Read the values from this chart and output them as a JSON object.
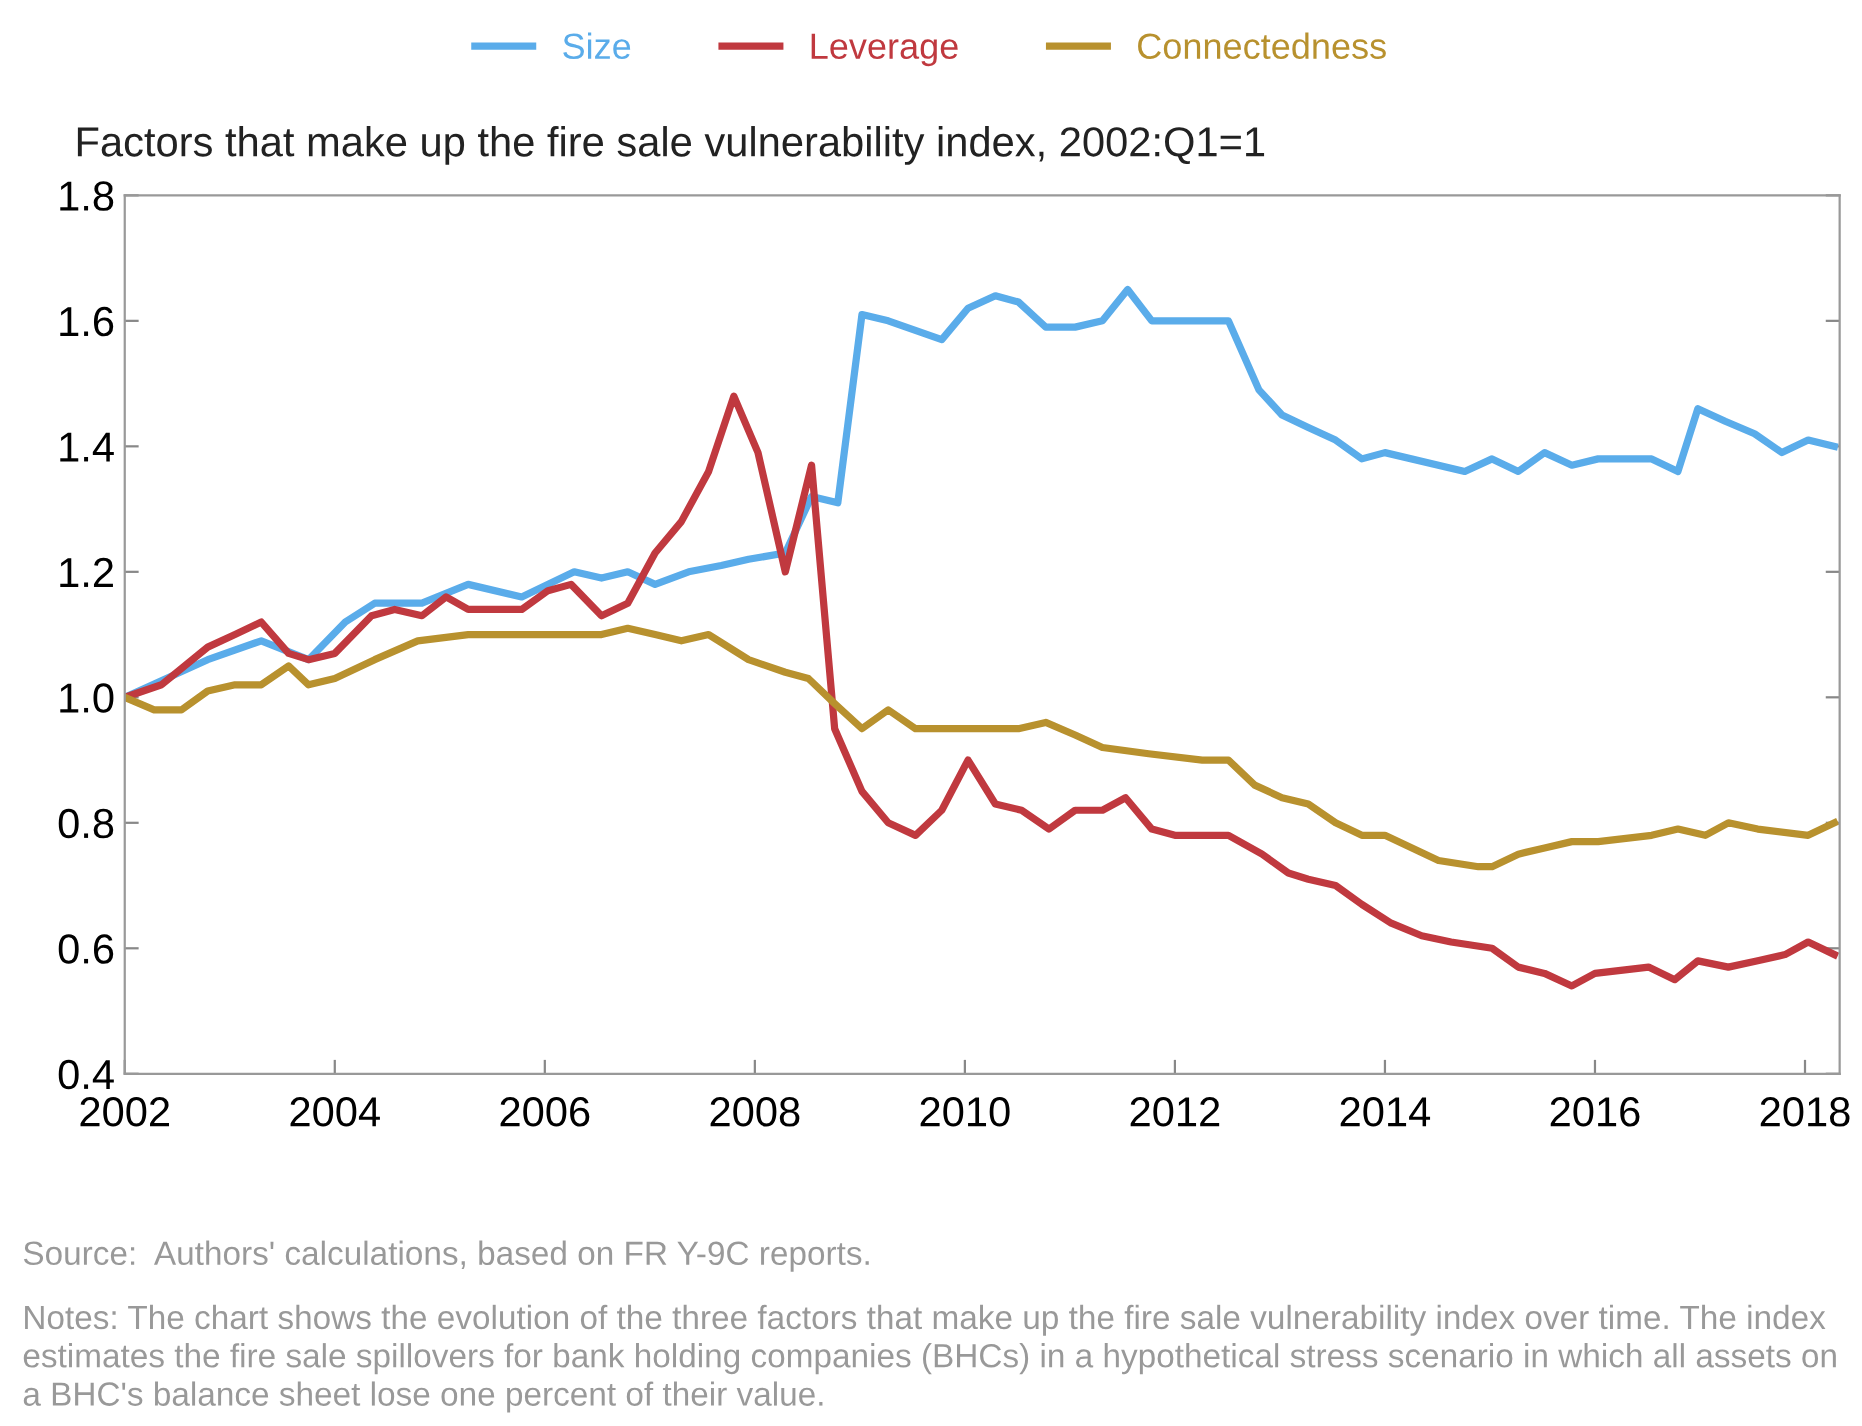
{
  "chart_data": {
    "type": "line",
    "title": "Factors that make up the fire sale vulnerability index, 2002:Q1=1",
    "annotations": [
      "Source:  Authors' calculations, based on FR Y-9C reports.",
      "Notes: The chart shows the evolution of the three factors that make up the fire sale vulnerability index over time. The index estimates the fire sale spillovers for bank holding companies (BHCs) in a hypothetical stress scenario in which all assets on a BHC's balance sheet lose one percent of their value."
    ],
    "series": [
      {
        "name": "Size",
        "color": "#5aacea",
        "x": [
          2002,
          2002.79,
          2003.3,
          2003.75,
          2004.1,
          2004.38,
          2004.83,
          2005.27,
          2005.78,
          2006.28,
          2006.54,
          2006.79,
          2007.05,
          2007.37,
          2007.68,
          2007.94,
          2008.29,
          2008.54,
          2008.79,
          2009.02,
          2009.27,
          2009.78,
          2010.03,
          2010.29,
          2010.51,
          2010.77,
          2011.05,
          2011.31,
          2011.55,
          2011.78,
          2012.0,
          2012.51,
          2012.8,
          2013.02,
          2013.27,
          2013.53,
          2013.78,
          2014.0,
          2014.76,
          2015.02,
          2015.27,
          2015.52,
          2015.78,
          2016.03,
          2016.54,
          2016.79,
          2016.98,
          2017.24,
          2017.52,
          2017.78,
          2018.03,
          2018.28
        ],
        "values": [
          1.0,
          1.06,
          1.09,
          1.06,
          1.12,
          1.15,
          1.15,
          1.18,
          1.16,
          1.2,
          1.19,
          1.2,
          1.18,
          1.2,
          1.21,
          1.22,
          1.23,
          1.32,
          1.31,
          1.61,
          1.6,
          1.57,
          1.62,
          1.64,
          1.63,
          1.59,
          1.59,
          1.6,
          1.65,
          1.6,
          1.6,
          1.6,
          1.49,
          1.45,
          1.43,
          1.41,
          1.38,
          1.39,
          1.36,
          1.38,
          1.36,
          1.39,
          1.37,
          1.38,
          1.38,
          1.36,
          1.46,
          1.44,
          1.42,
          1.39,
          1.41,
          1.4
        ]
      },
      {
        "name": "Leverage",
        "color": "#c0393f",
        "x": [
          2002,
          2002.35,
          2002.79,
          2003.05,
          2003.3,
          2003.56,
          2003.75,
          2004.0,
          2004.35,
          2004.57,
          2004.83,
          2005.06,
          2005.27,
          2005.52,
          2005.78,
          2006.03,
          2006.25,
          2006.54,
          2006.79,
          2007.05,
          2007.3,
          2007.56,
          2007.8,
          2008.03,
          2008.29,
          2008.54,
          2008.76,
          2009.02,
          2009.27,
          2009.53,
          2009.78,
          2010.03,
          2010.29,
          2010.54,
          2010.8,
          2011.05,
          2011.31,
          2011.53,
          2011.78,
          2012.0,
          2012.51,
          2012.83,
          2013.08,
          2013.27,
          2013.53,
          2013.78,
          2014.06,
          2014.35,
          2014.63,
          2015.02,
          2015.27,
          2015.52,
          2015.78,
          2016.0,
          2016.51,
          2016.76,
          2016.98,
          2017.27,
          2017.55,
          2017.81,
          2018.03,
          2018.28
        ],
        "values": [
          1.0,
          1.02,
          1.08,
          1.1,
          1.12,
          1.07,
          1.06,
          1.07,
          1.13,
          1.14,
          1.13,
          1.16,
          1.14,
          1.14,
          1.14,
          1.17,
          1.18,
          1.13,
          1.15,
          1.23,
          1.28,
          1.36,
          1.48,
          1.39,
          1.2,
          1.37,
          0.95,
          0.85,
          0.8,
          0.78,
          0.82,
          0.9,
          0.83,
          0.82,
          0.79,
          0.82,
          0.82,
          0.84,
          0.79,
          0.78,
          0.78,
          0.75,
          0.72,
          0.71,
          0.7,
          0.67,
          0.64,
          0.62,
          0.61,
          0.6,
          0.57,
          0.56,
          0.54,
          0.56,
          0.57,
          0.55,
          0.58,
          0.57,
          0.58,
          0.59,
          0.61,
          0.59
        ]
      },
      {
        "name": "Connectedness",
        "color": "#b8912e",
        "x": [
          2002,
          2002.28,
          2002.54,
          2002.79,
          2003.05,
          2003.3,
          2003.56,
          2003.75,
          2004.0,
          2004.38,
          2004.79,
          2005.27,
          2005.78,
          2006.28,
          2006.54,
          2006.79,
          2007.05,
          2007.3,
          2007.56,
          2007.94,
          2008.29,
          2008.51,
          2008.76,
          2009.02,
          2009.27,
          2009.53,
          2009.78,
          2010.1,
          2010.51,
          2010.77,
          2011.05,
          2011.31,
          2011.75,
          2012.26,
          2012.51,
          2012.76,
          2013.02,
          2013.27,
          2013.53,
          2013.78,
          2014.0,
          2014.51,
          2014.89,
          2015.02,
          2015.27,
          2015.52,
          2015.78,
          2016.03,
          2016.54,
          2016.79,
          2017.05,
          2017.27,
          2017.55,
          2018.03,
          2018.28
        ],
        "values": [
          1.0,
          0.98,
          0.98,
          1.01,
          1.02,
          1.02,
          1.05,
          1.02,
          1.03,
          1.06,
          1.09,
          1.1,
          1.1,
          1.1,
          1.1,
          1.11,
          1.1,
          1.09,
          1.1,
          1.06,
          1.04,
          1.03,
          0.99,
          0.95,
          0.98,
          0.95,
          0.95,
          0.95,
          0.95,
          0.96,
          0.94,
          0.92,
          0.91,
          0.9,
          0.9,
          0.86,
          0.84,
          0.83,
          0.8,
          0.78,
          0.78,
          0.74,
          0.73,
          0.73,
          0.75,
          0.76,
          0.77,
          0.77,
          0.78,
          0.79,
          0.78,
          0.8,
          0.79,
          0.78,
          0.8
        ]
      }
    ],
    "xlim": [
      2002,
      2018.33
    ],
    "xticks": [
      2002,
      2004,
      2006,
      2008,
      2010,
      2012,
      2014,
      2016,
      2018
    ],
    "ylim": [
      0.4,
      1.8
    ],
    "yticks": [
      {
        "value": 0.4,
        "label": "0.4"
      },
      {
        "value": 0.6,
        "label": "0.6"
      },
      {
        "value": 0.8,
        "label": "0.8"
      },
      {
        "value": 1.0,
        "label": "1.0"
      },
      {
        "value": 1.2,
        "label": "1.2"
      },
      {
        "value": 1.4,
        "label": "1.4"
      },
      {
        "value": 1.6,
        "label": "1.6"
      },
      {
        "value": 1.8,
        "label": "1.8"
      }
    ],
    "legend": "top",
    "grid": false,
    "marker": "none",
    "line_style": "solid"
  }
}
